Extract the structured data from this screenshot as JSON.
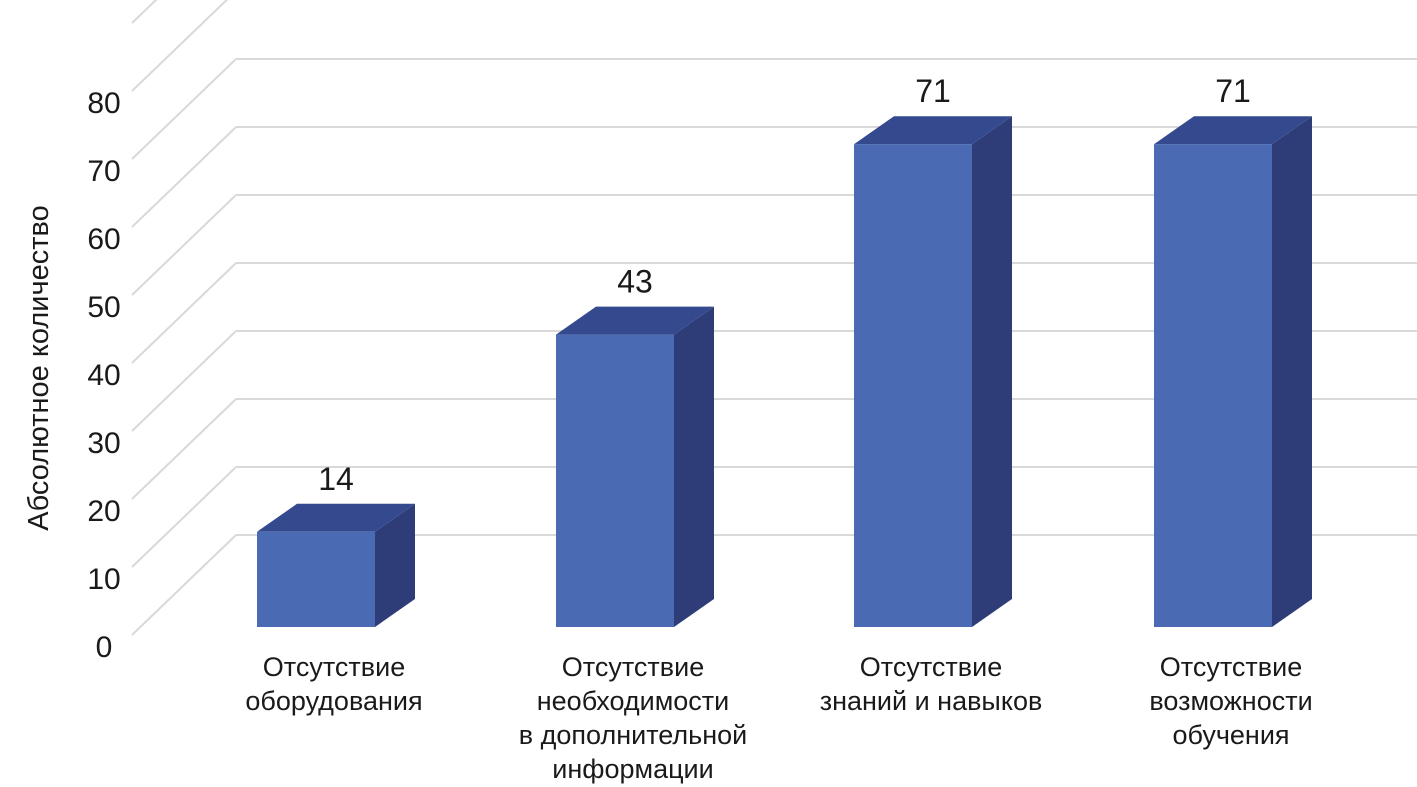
{
  "chart_data": {
    "type": "bar",
    "style": "3d-column",
    "title": "",
    "xlabel": "",
    "ylabel": "Абсолютное количество",
    "ylim": [
      0,
      80
    ],
    "y_ticks": [
      "0",
      "10",
      "20",
      "30",
      "40",
      "50",
      "60",
      "70",
      "80"
    ],
    "categories": [
      [
        "Отсутствие",
        "оборудования"
      ],
      [
        "Отсутствие",
        "необходимости",
        "в дополнительной",
        "информации"
      ],
      [
        "Отсутствие",
        "знаний и навыков"
      ],
      [
        "Отсутствие",
        "возможности",
        "обучения"
      ]
    ],
    "values": [
      14,
      43,
      71,
      71
    ],
    "data_labels": [
      "14",
      "43",
      "71",
      "71"
    ],
    "grid": true,
    "legend": "none",
    "colors": {
      "bar_front": "#4a6bb4",
      "bar_top": "#34498e",
      "bar_side": "#2e3d78",
      "grid": "#d9d9d9"
    }
  }
}
